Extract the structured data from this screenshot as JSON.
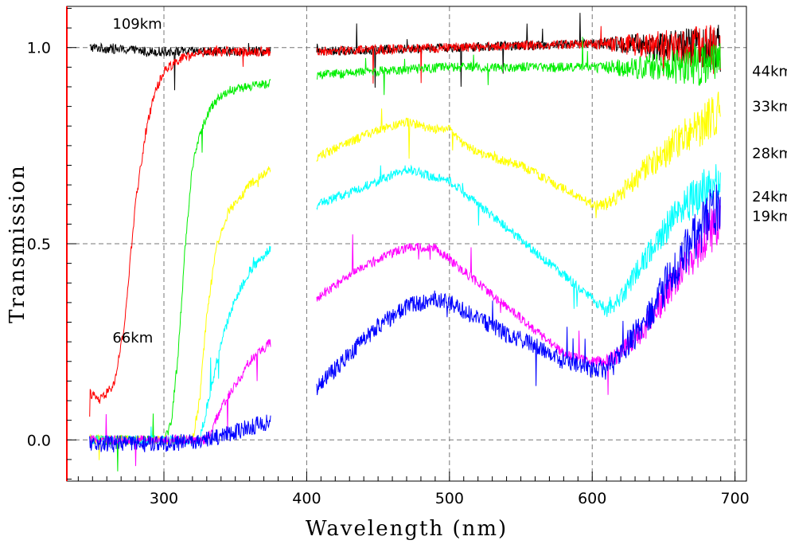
{
  "chart_data": {
    "type": "line",
    "title": "",
    "xlabel": "Wavelength (nm)",
    "ylabel": "Transmission",
    "xlim": [
      232,
      708
    ],
    "ylim": [
      -0.105,
      1.105
    ],
    "grid": true,
    "x_ticks": [
      300,
      400,
      500,
      600,
      700
    ],
    "y_ticks": [
      0.0,
      0.5,
      1.0
    ],
    "x_tick_labels": [
      "300",
      "400",
      "500",
      "600",
      "700"
    ],
    "y_tick_labels": [
      "0.0",
      "0.5",
      "1.0"
    ],
    "segments": [
      [
        248,
        375
      ],
      [
        407,
        690
      ]
    ],
    "series": [
      {
        "name": "109km",
        "color": "#000000",
        "points": [
          [
            250,
            1.0
          ],
          [
            290,
            0.99
          ],
          [
            300,
            0.99
          ],
          [
            375,
            0.99
          ],
          [
            407,
            0.99
          ],
          [
            500,
            1.0
          ],
          [
            600,
            1.01
          ],
          [
            690,
            1.0
          ]
        ]
      },
      {
        "name": "66km",
        "color": "#ff0000",
        "points": [
          [
            248,
            0.12
          ],
          [
            255,
            0.1
          ],
          [
            265,
            0.14
          ],
          [
            272,
            0.28
          ],
          [
            280,
            0.6
          ],
          [
            287,
            0.78
          ],
          [
            293,
            0.88
          ],
          [
            300,
            0.94
          ],
          [
            310,
            0.97
          ],
          [
            330,
            0.99
          ],
          [
            375,
            0.99
          ],
          [
            407,
            0.99
          ],
          [
            500,
            1.0
          ],
          [
            600,
            1.01
          ],
          [
            690,
            1.0
          ]
        ]
      },
      {
        "name": "44km",
        "color": "#00ee00",
        "points": [
          [
            248,
            0.0
          ],
          [
            300,
            0.0
          ],
          [
            305,
            0.04
          ],
          [
            310,
            0.22
          ],
          [
            315,
            0.5
          ],
          [
            320,
            0.7
          ],
          [
            327,
            0.8
          ],
          [
            335,
            0.86
          ],
          [
            345,
            0.89
          ],
          [
            360,
            0.9
          ],
          [
            375,
            0.91
          ],
          [
            407,
            0.93
          ],
          [
            450,
            0.94
          ],
          [
            500,
            0.95
          ],
          [
            550,
            0.95
          ],
          [
            600,
            0.95
          ],
          [
            650,
            0.95
          ],
          [
            690,
            0.96
          ]
        ]
      },
      {
        "name": "33km",
        "color": "#ffff00",
        "points": [
          [
            248,
            0.0
          ],
          [
            320,
            0.0
          ],
          [
            325,
            0.1
          ],
          [
            330,
            0.32
          ],
          [
            337,
            0.5
          ],
          [
            345,
            0.58
          ],
          [
            360,
            0.65
          ],
          [
            375,
            0.69
          ],
          [
            407,
            0.72
          ],
          [
            430,
            0.76
          ],
          [
            450,
            0.79
          ],
          [
            470,
            0.81
          ],
          [
            490,
            0.79
          ],
          [
            500,
            0.8
          ],
          [
            510,
            0.75
          ],
          [
            530,
            0.72
          ],
          [
            550,
            0.7
          ],
          [
            570,
            0.66
          ],
          [
            590,
            0.62
          ],
          [
            600,
            0.6
          ],
          [
            610,
            0.6
          ],
          [
            620,
            0.63
          ],
          [
            640,
            0.7
          ],
          [
            660,
            0.76
          ],
          [
            690,
            0.84
          ]
        ]
      },
      {
        "name": "28km",
        "color": "#00ffff",
        "points": [
          [
            248,
            0.0
          ],
          [
            325,
            0.0
          ],
          [
            330,
            0.08
          ],
          [
            340,
            0.25
          ],
          [
            350,
            0.36
          ],
          [
            360,
            0.43
          ],
          [
            375,
            0.49
          ],
          [
            407,
            0.6
          ],
          [
            430,
            0.63
          ],
          [
            450,
            0.66
          ],
          [
            470,
            0.69
          ],
          [
            490,
            0.67
          ],
          [
            500,
            0.66
          ],
          [
            520,
            0.6
          ],
          [
            540,
            0.54
          ],
          [
            560,
            0.48
          ],
          [
            580,
            0.42
          ],
          [
            600,
            0.36
          ],
          [
            610,
            0.33
          ],
          [
            620,
            0.36
          ],
          [
            640,
            0.48
          ],
          [
            660,
            0.58
          ],
          [
            680,
            0.64
          ],
          [
            690,
            0.66
          ]
        ]
      },
      {
        "name": "24km",
        "color": "#ff00ff",
        "points": [
          [
            248,
            0.0
          ],
          [
            330,
            0.0
          ],
          [
            340,
            0.08
          ],
          [
            350,
            0.14
          ],
          [
            360,
            0.2
          ],
          [
            375,
            0.25
          ],
          [
            407,
            0.36
          ],
          [
            430,
            0.42
          ],
          [
            450,
            0.46
          ],
          [
            470,
            0.49
          ],
          [
            490,
            0.49
          ],
          [
            500,
            0.46
          ],
          [
            520,
            0.4
          ],
          [
            540,
            0.34
          ],
          [
            560,
            0.28
          ],
          [
            580,
            0.22
          ],
          [
            600,
            0.2
          ],
          [
            610,
            0.2
          ],
          [
            620,
            0.22
          ],
          [
            640,
            0.3
          ],
          [
            660,
            0.42
          ],
          [
            680,
            0.52
          ],
          [
            690,
            0.56
          ]
        ]
      },
      {
        "name": "19km",
        "color": "#0000ff",
        "points": [
          [
            248,
            -0.01
          ],
          [
            300,
            -0.01
          ],
          [
            330,
            0.0
          ],
          [
            350,
            0.02
          ],
          [
            375,
            0.05
          ],
          [
            407,
            0.13
          ],
          [
            430,
            0.22
          ],
          [
            450,
            0.29
          ],
          [
            470,
            0.34
          ],
          [
            490,
            0.36
          ],
          [
            500,
            0.35
          ],
          [
            520,
            0.31
          ],
          [
            540,
            0.27
          ],
          [
            560,
            0.24
          ],
          [
            580,
            0.2
          ],
          [
            600,
            0.18
          ],
          [
            610,
            0.18
          ],
          [
            620,
            0.22
          ],
          [
            640,
            0.32
          ],
          [
            660,
            0.45
          ],
          [
            680,
            0.56
          ],
          [
            690,
            0.6
          ]
        ]
      }
    ],
    "annotations": [
      {
        "text": "109km",
        "x": 264,
        "y": 1.06
      },
      {
        "text": "66km",
        "x": 264,
        "y": 0.26
      },
      {
        "text": "44km",
        "x": 712,
        "y": 0.94
      },
      {
        "text": "33km",
        "x": 712,
        "y": 0.85
      },
      {
        "text": "28km",
        "x": 712,
        "y": 0.73
      },
      {
        "text": "24km",
        "x": 712,
        "y": 0.62
      },
      {
        "text": "19km",
        "x": 712,
        "y": 0.57
      }
    ]
  },
  "colors": {
    "axis_left": "#ff0000",
    "axis": "#000000",
    "grid": "#777777"
  }
}
